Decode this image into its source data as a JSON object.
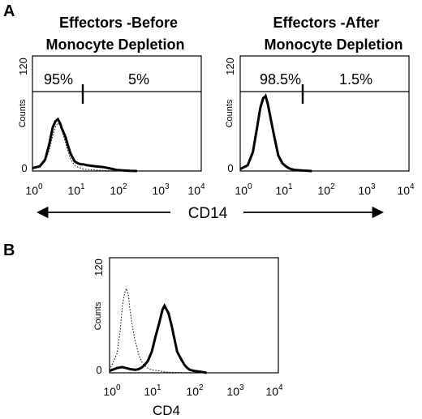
{
  "chart_data": [
    {
      "type": "area",
      "panel_label": "A",
      "title": "Effectors -Before Monocyte Depletion",
      "title_lines": [
        "Effectors -Before",
        "Monocyte Depletion"
      ],
      "ylabel": "Counts",
      "ylim": [
        0,
        120
      ],
      "y_ticks": [
        "0",
        "120"
      ],
      "xscale": "log",
      "xlim": [
        1,
        10000
      ],
      "x_tick_labels": [
        {
          "base": "10",
          "exp": "0"
        },
        {
          "base": "10",
          "exp": "1"
        },
        {
          "base": "10",
          "exp": "2"
        },
        {
          "base": "10",
          "exp": "3"
        },
        {
          "base": "10",
          "exp": "4"
        }
      ],
      "gate": {
        "position": 17,
        "level": 88
      },
      "gate_labels": {
        "left": "95%",
        "right": "5%"
      },
      "series": [
        {
          "style": "solid",
          "x": [
            1.0,
            1.5,
            2.0,
            2.5,
            3.0,
            3.5,
            4.0,
            4.5,
            5.0,
            6.0,
            7.0,
            8.0,
            10,
            12,
            14,
            16,
            20,
            30,
            50,
            80,
            100,
            150,
            200,
            300
          ],
          "y": [
            3,
            5,
            12,
            28,
            45,
            52,
            54,
            50,
            44,
            36,
            26,
            18,
            10,
            8,
            7,
            7,
            6,
            5,
            4,
            2,
            1,
            0.5,
            0.2,
            0
          ]
        },
        {
          "style": "dotted",
          "x": [
            1.0,
            1.5,
            2.0,
            2.5,
            3.0,
            3.5,
            4.0,
            4.5,
            5.0,
            6.0,
            7.0,
            8.0,
            10,
            12,
            14,
            16,
            20,
            30,
            50,
            80,
            100,
            150
          ],
          "y": [
            2,
            4,
            10,
            22,
            36,
            46,
            50,
            48,
            42,
            30,
            20,
            12,
            6,
            4,
            3,
            2,
            1.5,
            1,
            0.5,
            0.2,
            0.1,
            0
          ]
        }
      ]
    },
    {
      "type": "area",
      "title": "Effectors -After Monocyte Depletion",
      "title_lines": [
        "Effectors -After",
        "Monocyte  Depletion"
      ],
      "ylabel": "Counts",
      "ylim": [
        0,
        120
      ],
      "y_ticks": [
        "0",
        "120"
      ],
      "xscale": "log",
      "xlim": [
        1,
        10000
      ],
      "x_tick_labels": [
        {
          "base": "10",
          "exp": "0"
        },
        {
          "base": "10",
          "exp": "1"
        },
        {
          "base": "10",
          "exp": "2"
        },
        {
          "base": "10",
          "exp": "3"
        },
        {
          "base": "10",
          "exp": "4"
        }
      ],
      "gate": {
        "position": 17,
        "level": 88
      },
      "gate_labels": {
        "left": "98.5%",
        "right": "1.5%"
      },
      "series": [
        {
          "style": "solid",
          "x": [
            1.0,
            1.5,
            2.0,
            2.5,
            3.0,
            3.5,
            4.0,
            4.5,
            5.0,
            6.0,
            7.0,
            8.0,
            10,
            12,
            14,
            16,
            20,
            30,
            50
          ],
          "y": [
            2,
            6,
            20,
            45,
            66,
            76,
            78,
            70,
            60,
            42,
            28,
            16,
            8,
            5,
            3,
            2,
            1,
            0.5,
            0
          ]
        },
        {
          "style": "dotted",
          "x": [
            1.0,
            1.5,
            2.0,
            2.5,
            3.0,
            3.5,
            4.0,
            4.5,
            5.0,
            6.0,
            7.0,
            8.0,
            10,
            12,
            14,
            16,
            20,
            30,
            50
          ],
          "y": [
            2,
            5,
            18,
            42,
            64,
            74,
            80,
            72,
            62,
            44,
            30,
            18,
            9,
            6,
            4,
            2,
            1,
            0.5,
            0
          ]
        }
      ]
    },
    {
      "type": "area",
      "panel_label": "B",
      "ylabel": "Counts",
      "ylim": [
        0,
        120
      ],
      "y_ticks": [
        "0",
        "120"
      ],
      "xscale": "log",
      "xlim": [
        1,
        10000
      ],
      "xlabel": "CD4",
      "x_tick_labels": [
        {
          "base": "10",
          "exp": "0"
        },
        {
          "base": "10",
          "exp": "1"
        },
        {
          "base": "10",
          "exp": "2"
        },
        {
          "base": "10",
          "exp": "3"
        },
        {
          "base": "10",
          "exp": "4"
        }
      ],
      "series": [
        {
          "style": "solid",
          "x": [
            1.0,
            1.5,
            2,
            3,
            4,
            5,
            6,
            7,
            8,
            10,
            12,
            15,
            18,
            20,
            25,
            30,
            35,
            40,
            50,
            60,
            70,
            80,
            100,
            150,
            200
          ],
          "y": [
            2,
            5,
            6,
            4,
            3,
            4,
            6,
            9,
            12,
            22,
            36,
            52,
            66,
            70,
            62,
            48,
            34,
            22,
            14,
            8,
            5,
            3,
            2,
            1,
            0
          ]
        },
        {
          "style": "dotted",
          "x": [
            1.0,
            1.5,
            1.8,
            2.0,
            2.3,
            2.5,
            2.8,
            3.0,
            3.5,
            4.0,
            5.0,
            6.0,
            8.0,
            10,
            15,
            20,
            30,
            50,
            100
          ],
          "y": [
            3,
            20,
            45,
            70,
            84,
            88,
            80,
            68,
            48,
            34,
            18,
            10,
            5,
            3,
            2,
            1,
            0.5,
            0.2,
            0
          ]
        }
      ]
    }
  ],
  "shared_axis": {
    "label": "CD14"
  }
}
